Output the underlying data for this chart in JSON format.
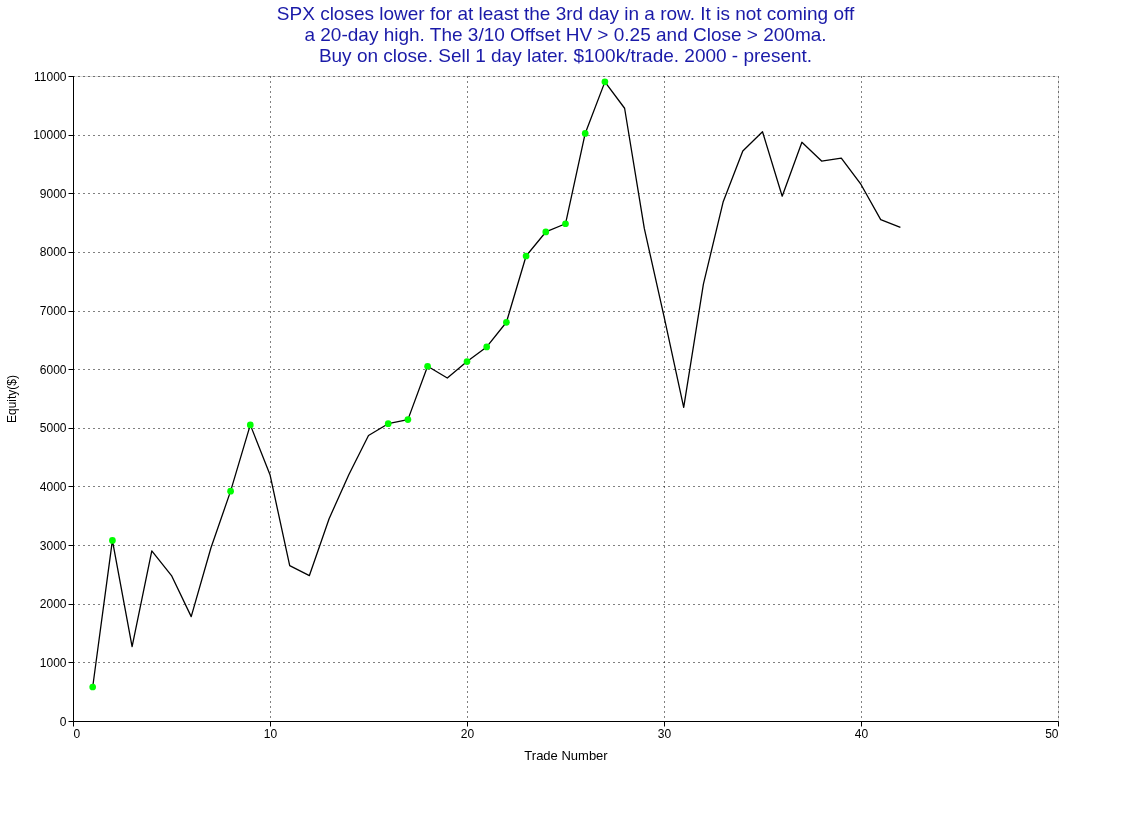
{
  "chart_data": {
    "type": "line",
    "title": "SPX closes lower for at least the 3rd day in a row. It is not coming off\na 20-day high. The 3/10 Offset HV > 0.25 and Close > 200ma.\nBuy on close. Sell 1 day later. $100k/trade. 2000 - present.",
    "xlabel": "Trade Number",
    "ylabel": "Equity($)",
    "x": [
      1,
      2,
      3,
      4,
      5,
      6,
      7,
      8,
      9,
      10,
      11,
      12,
      13,
      14,
      15,
      16,
      17,
      18,
      19,
      20,
      21,
      22,
      23,
      24,
      25,
      26,
      27,
      28,
      29,
      30,
      31,
      32,
      33,
      34,
      35,
      36,
      37,
      38,
      39,
      40,
      41,
      42
    ],
    "series": [
      {
        "color": "#000000",
        "values": [
          580,
          3080,
          1270,
          2900,
          2480,
          1780,
          2950,
          3920,
          5050,
          4200,
          2650,
          2480,
          3450,
          4200,
          4870,
          5070,
          5140,
          6050,
          5850,
          6130,
          6380,
          6800,
          7930,
          8340,
          8480,
          10020,
          10900,
          10450,
          8400,
          6900,
          5350,
          7450,
          8850,
          9720,
          10050,
          8950,
          9870,
          9550,
          9600,
          9150,
          8550,
          8420
        ]
      },
      {
        "type": "scatter",
        "color": "#00ff00",
        "marker": "circle",
        "x": [
          1,
          2,
          8,
          9,
          16,
          17,
          18,
          20,
          21,
          22,
          23,
          24,
          25,
          26,
          27
        ],
        "values": [
          580,
          3080,
          3920,
          5050,
          5070,
          5140,
          6050,
          6130,
          6380,
          6800,
          7930,
          8340,
          8480,
          10020,
          10900
        ]
      }
    ],
    "xlim": [
      0,
      50
    ],
    "xticks": [
      0,
      10,
      20,
      30,
      40,
      50
    ],
    "ylim": [
      0,
      11000
    ],
    "yticks": [
      0,
      1000,
      2000,
      3000,
      4000,
      5000,
      6000,
      7000,
      8000,
      9000,
      10000,
      11000
    ],
    "grid": true
  }
}
